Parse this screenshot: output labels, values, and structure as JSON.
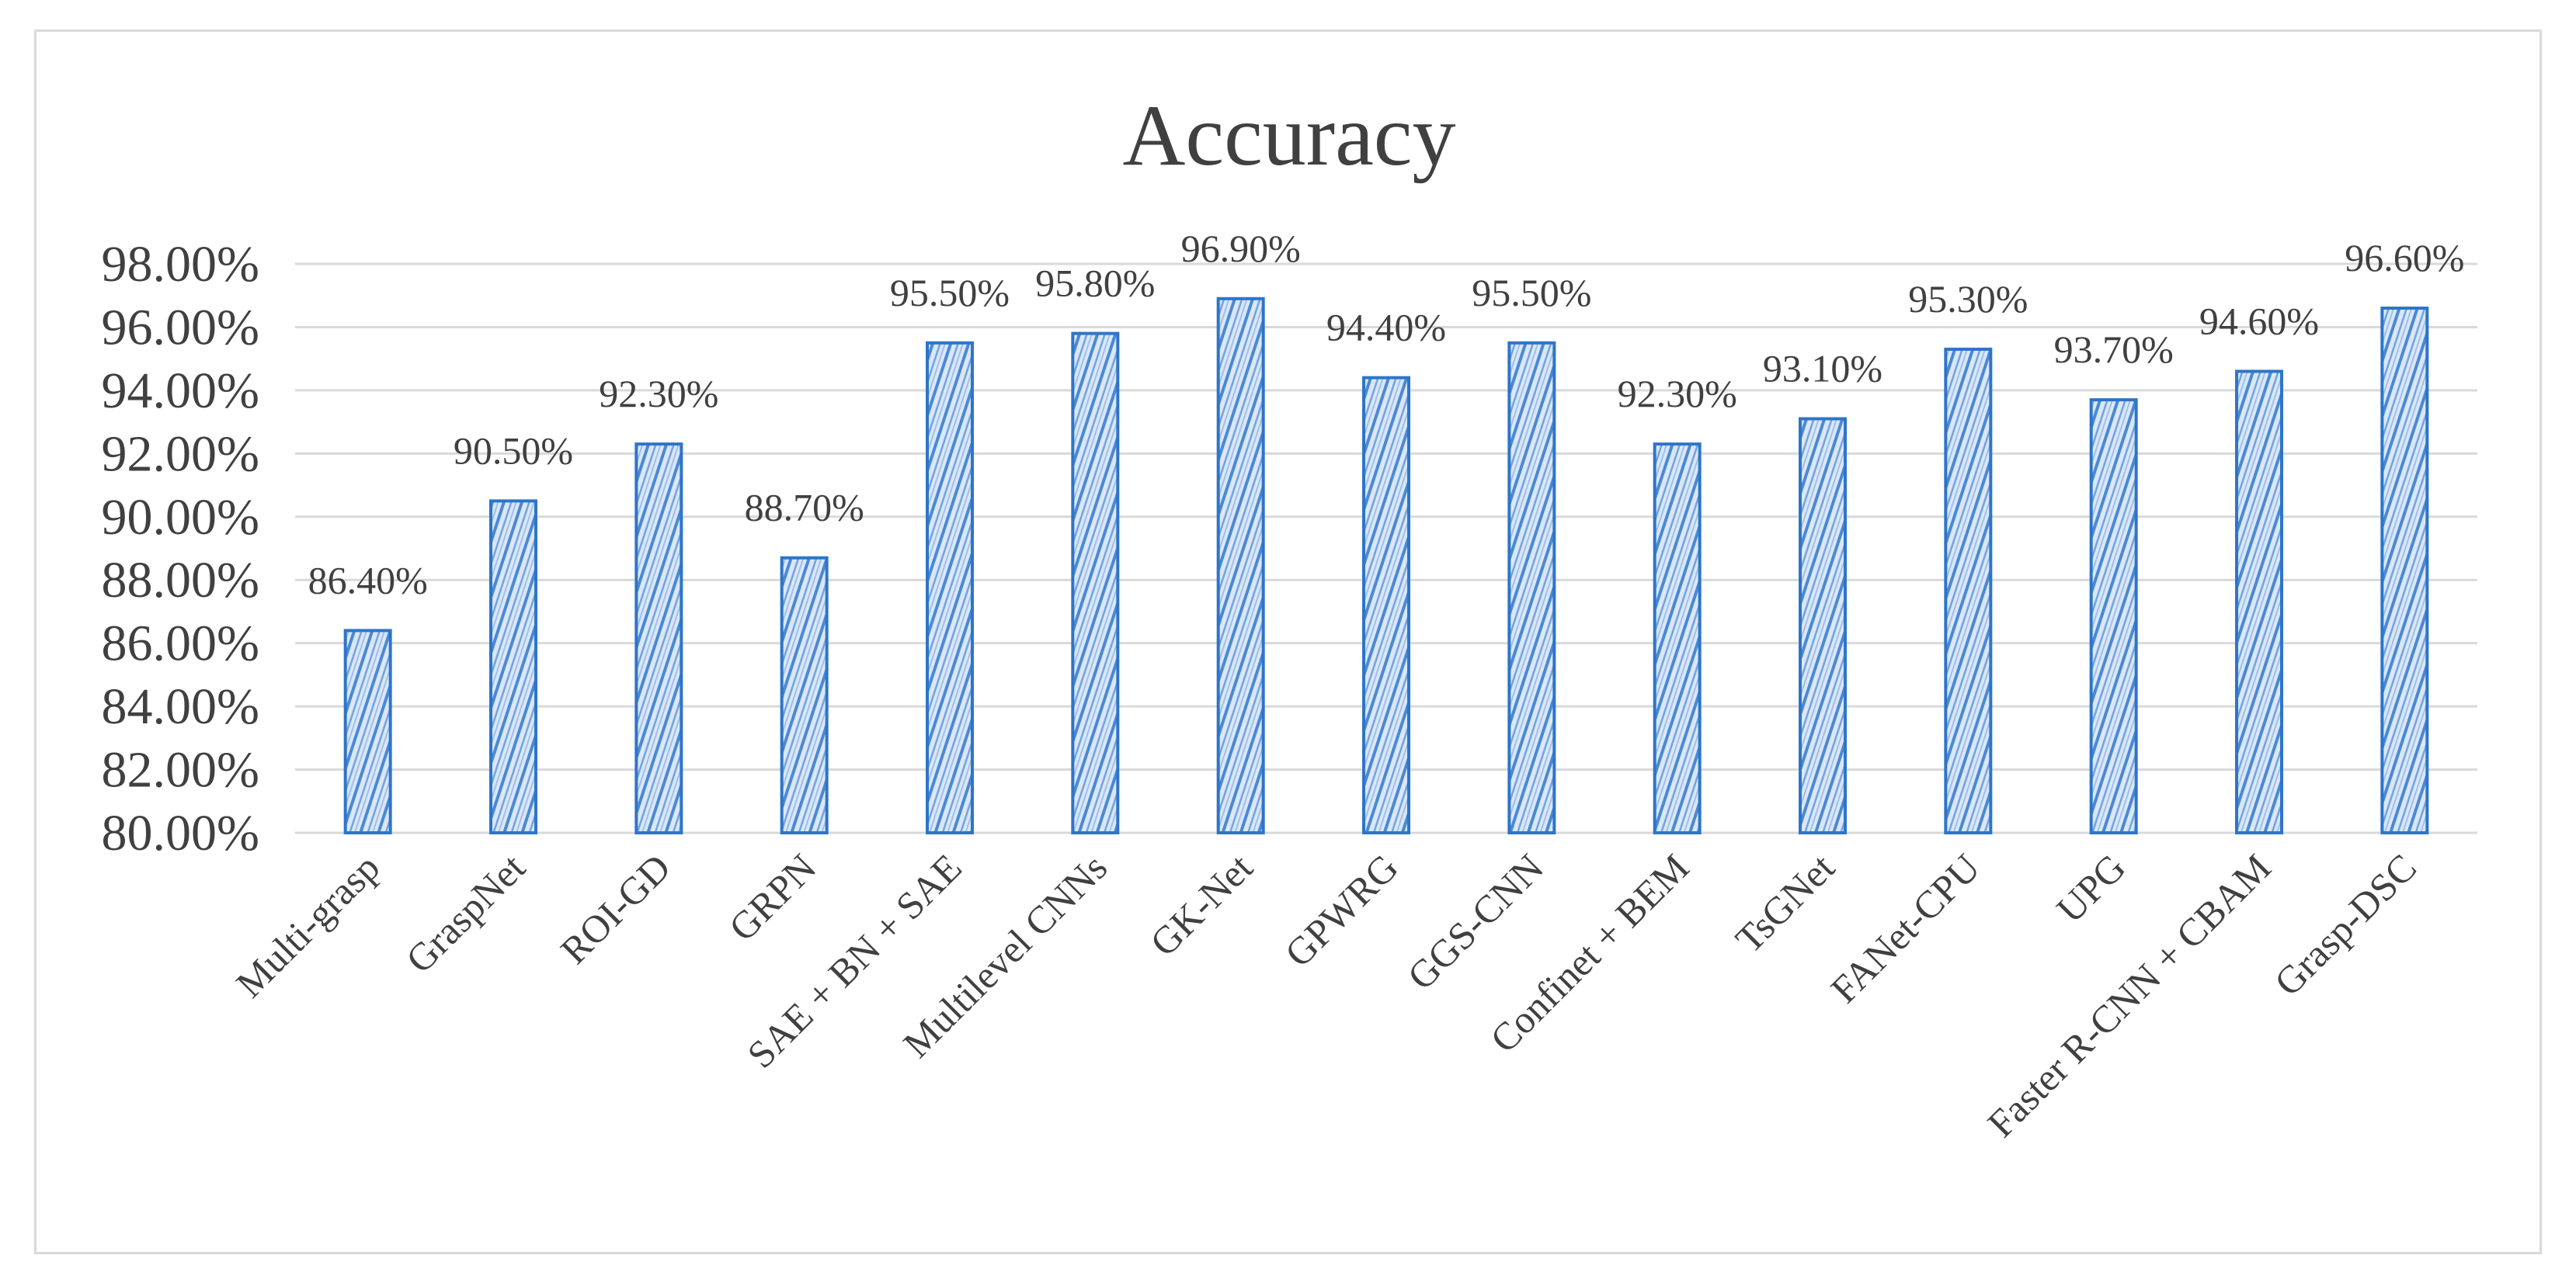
{
  "chart_data": {
    "type": "bar",
    "title": "Accuracy",
    "xlabel": "",
    "ylabel": "",
    "ylim": [
      0.8,
      0.98
    ],
    "y_ticks": [
      "80.00%",
      "82.00%",
      "84.00%",
      "86.00%",
      "88.00%",
      "90.00%",
      "92.00%",
      "94.00%",
      "96.00%",
      "98.00%"
    ],
    "categories": [
      "Multi-grasp",
      "GraspNet",
      "ROI-GD",
      "GRPN",
      "SAE + BN + SAE",
      "Multilevel CNNs",
      "GK-Net",
      "GPWRG",
      "GGS-CNN",
      "Confinet + BEM",
      "TsGNet",
      "FANet-CPU",
      "UPG",
      "Faster R-CNN + CBAM",
      "Grasp-DSC"
    ],
    "values": [
      0.864,
      0.905,
      0.923,
      0.887,
      0.955,
      0.958,
      0.969,
      0.944,
      0.955,
      0.923,
      0.931,
      0.953,
      0.937,
      0.946,
      0.966
    ],
    "data_labels": [
      "86.40%",
      "90.50%",
      "92.30%",
      "88.70%",
      "95.50%",
      "95.80%",
      "96.90%",
      "94.40%",
      "95.50%",
      "92.30%",
      "93.10%",
      "95.30%",
      "93.70%",
      "94.60%",
      "96.60%"
    ],
    "grid": true,
    "legend": "none",
    "colors": {
      "bar_stroke": "#2e75c9",
      "bar_fill": "#dbe7f7",
      "hatch": "#4a89d6",
      "grid": "#d9d9d9",
      "text": "#404040",
      "frame": "#d9d9d9"
    }
  }
}
